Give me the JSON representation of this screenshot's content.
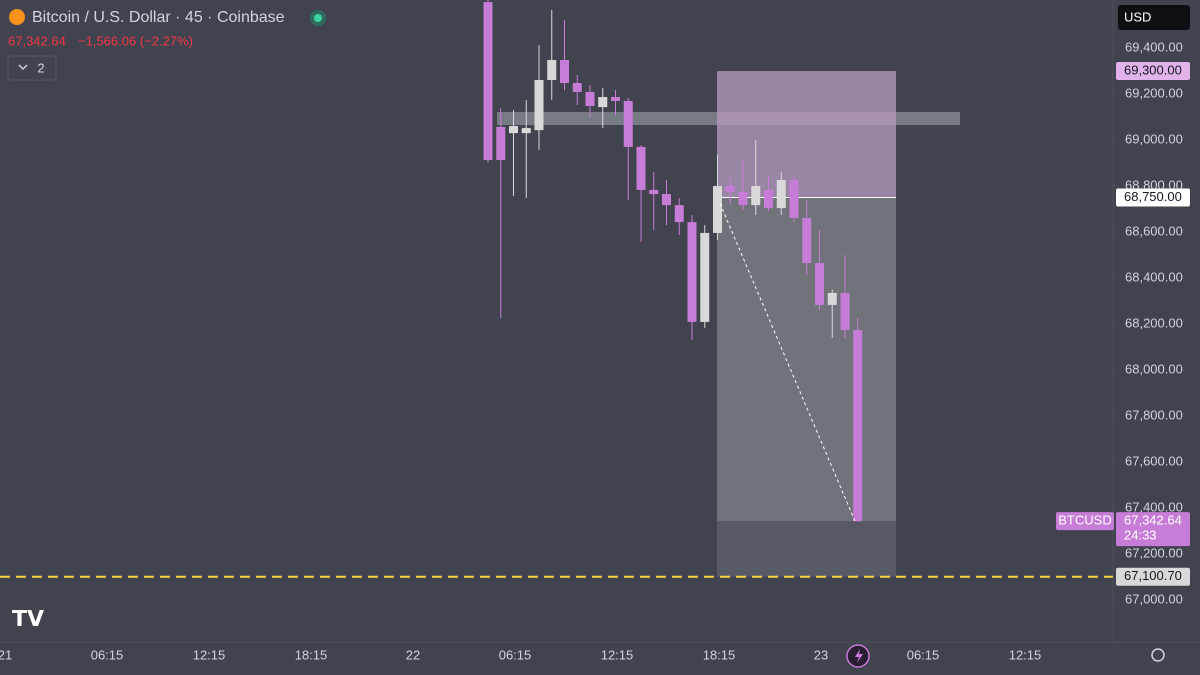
{
  "header": {
    "title": "Bitcoin / U.S. Dollar · 45 · Coinbase",
    "price": "67,342.64",
    "change": "−1,566.06 (−2.27%)",
    "indicators": "2",
    "currency": "USD"
  },
  "chart_data": {
    "type": "candlestick",
    "up_color": "#d9d9d9",
    "down_color": "#c77dd7",
    "open": [
      69600,
      69057,
      69030,
      69030,
      69043,
      69261,
      69348,
      69248,
      69209,
      69143,
      69187,
      69170,
      68970,
      68783,
      68765,
      68717,
      68643,
      68209,
      68596,
      68800,
      68774,
      68717,
      68783,
      68704,
      68826,
      68661,
      68465,
      68283,
      68335,
      68174
    ],
    "high": [
      69609,
      69139,
      69130,
      69174,
      69413,
      69565,
      69522,
      69283,
      69239,
      69226,
      69217,
      69183,
      68978,
      68861,
      68826,
      68748,
      68674,
      68630,
      68935,
      68835,
      68913,
      69000,
      68848,
      68861,
      68848,
      68739,
      68609,
      68350,
      68500,
      68226
    ],
    "low": [
      68900,
      68226,
      68757,
      68748,
      68957,
      69174,
      69217,
      69152,
      69096,
      69052,
      69109,
      68739,
      68557,
      68609,
      68630,
      68587,
      68130,
      68183,
      68565,
      68717,
      68696,
      68674,
      68691,
      68674,
      68643,
      68413,
      68261,
      68139,
      68139,
      67339
    ],
    "close": [
      68913,
      68913,
      69061,
      69052,
      69261,
      69348,
      69248,
      69209,
      69148,
      69187,
      69170,
      68970,
      68783,
      68765,
      68717,
      68643,
      68209,
      68596,
      68800,
      68774,
      68717,
      68800,
      68704,
      68826,
      68661,
      68465,
      68283,
      68335,
      68174,
      67342.64
    ],
    "ylim": [
      66817,
      69609
    ],
    "yticks": [
      {
        "value": 69400,
        "label": "69,400.00"
      },
      {
        "value": 69200,
        "label": "69,200.00"
      },
      {
        "value": 69000,
        "label": "69,000.00"
      },
      {
        "value": 68800,
        "label": "68,800.00"
      },
      {
        "value": 68600,
        "label": "68,600.00"
      },
      {
        "value": 68400,
        "label": "68,400.00"
      },
      {
        "value": 68200,
        "label": "68,200.00"
      },
      {
        "value": 68000,
        "label": "68,000.00"
      },
      {
        "value": 67800,
        "label": "67,800.00"
      },
      {
        "value": 67600,
        "label": "67,600.00"
      },
      {
        "value": 67400,
        "label": "67,400.00"
      },
      {
        "value": 67200,
        "label": "67,200.00"
      },
      {
        "value": 67000,
        "label": "67,000.00"
      }
    ],
    "x_labels": [
      "21",
      "06:15",
      "12:15",
      "18:15",
      "22",
      "06:15",
      "12:15",
      "18:15",
      "23",
      "06:15",
      "12:15"
    ],
    "markers": [
      {
        "value": 69300,
        "label": "69,300.00",
        "color": "#e2b3ea"
      },
      {
        "value": 68750,
        "label": "68,750.00",
        "color": "#ffffff"
      },
      {
        "value": 67342.64,
        "label": "67,342.64",
        "color": "#c77dd7",
        "symbol": "BTCUSD",
        "countdown": "24:33"
      },
      {
        "value": 67100.7,
        "label": "67,100.70",
        "color": "#d9d9d9",
        "line_color": "#f5d442"
      }
    ]
  }
}
